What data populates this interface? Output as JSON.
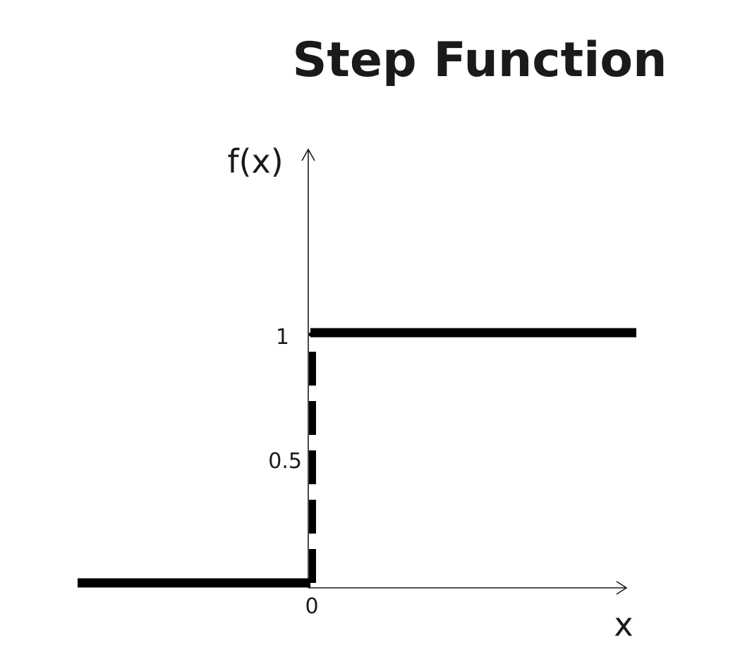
{
  "title": "Step Function",
  "ylabel": "f(x)",
  "xlabel": "x",
  "ticks": {
    "y_one": "1",
    "y_half": "0.5",
    "x_zero": "0"
  },
  "chart_data": {
    "type": "line",
    "title": "Step Function",
    "xlabel": "x",
    "ylabel": "f(x)",
    "segments": [
      {
        "name": "",
        "style": "solid",
        "x": [
          -1,
          0
        ],
        "y": [
          0,
          0
        ]
      },
      {
        "name": "",
        "style": "dashed",
        "x": [
          0,
          0
        ],
        "y": [
          0,
          1
        ]
      },
      {
        "name": "",
        "style": "solid",
        "x": [
          0,
          1.4
        ],
        "y": [
          1,
          1
        ]
      }
    ],
    "yticks": [
      0.5,
      1
    ],
    "xticks": [
      0
    ],
    "grid": false
  }
}
